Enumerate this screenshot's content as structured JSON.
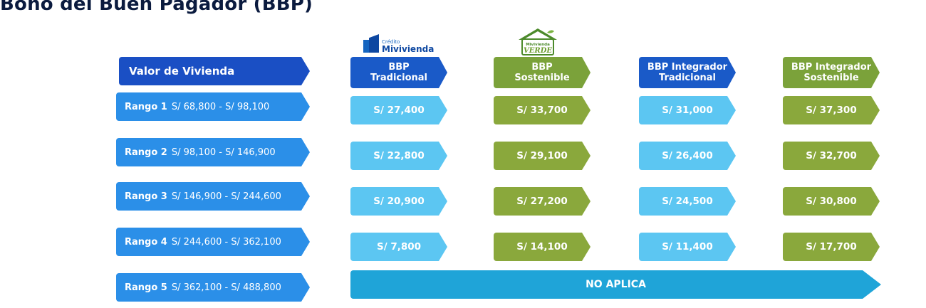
{
  "title": "Bono del Buen Pagador (BBP)",
  "logos": {
    "mivivienda_small": "Crédito",
    "mivivienda_big": "Mivivienda",
    "verde_top": "Mivivienda",
    "verde_bottom": "VERDE"
  },
  "header": {
    "valor": "Valor de Vivienda",
    "columns": [
      {
        "line1": "BBP",
        "line2": "Tradicional"
      },
      {
        "line1": "BBP",
        "line2": "Sostenible"
      },
      {
        "line1": "BBP Integrador",
        "line2": "Tradicional"
      },
      {
        "line1": "BBP Integrador",
        "line2": "Sostenible"
      }
    ]
  },
  "rows": [
    {
      "label": "Rango 1",
      "range": "S/ 68,800 - S/ 98,100",
      "values": [
        "S/ 27,400",
        "S/ 33,700",
        "S/ 31,000",
        "S/ 37,300"
      ]
    },
    {
      "label": "Rango 2",
      "range": "S/ 98,100 - S/ 146,900",
      "values": [
        "S/ 22,800",
        "S/ 29,100",
        "S/ 26,400",
        "S/ 32,700"
      ]
    },
    {
      "label": "Rango 3",
      "range": "S/ 146,900 - S/ 244,600",
      "values": [
        "S/ 20,900",
        "S/ 27,200",
        "S/ 24,500",
        "S/ 30,800"
      ]
    },
    {
      "label": "Rango 4",
      "range": "S/ 244,600 - S/ 362,100",
      "values": [
        "S/ 7,800",
        "S/ 14,100",
        "S/ 11,400",
        "S/ 17,700"
      ]
    },
    {
      "label": "Rango 5",
      "range": "S/ 362,100 - S/ 488,800"
    }
  ],
  "no_aplica": "NO APLICA",
  "colors": {
    "header_blue": "#1a4fc4",
    "range_blue": "#2b8fe8",
    "light_blue": "#5cc6f2",
    "green": "#8aa83c",
    "na_blue": "#1fa4d8"
  }
}
